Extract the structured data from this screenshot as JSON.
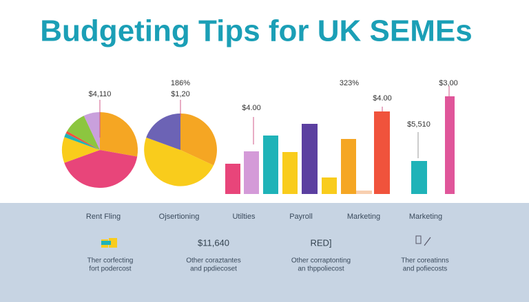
{
  "header": {
    "title": "Budgeting Tips for UK SEMEs"
  },
  "labels": [
    "$4,110",
    "186%",
    "$1,20",
    "323%",
    "$4.00",
    "$4.00",
    "$5,510",
    "$3,00"
  ],
  "categories": [
    "Rent Fling",
    "Ojsertioning",
    "Utilties",
    "Payroll",
    "Marketing",
    "Marketing"
  ],
  "bottom": [
    "$11,640",
    "RED]"
  ],
  "captions": [
    [
      "Ther corfecting",
      "fort podercost"
    ],
    [
      "Other coraztantes",
      "and ppdiecoset"
    ],
    [
      "Other corraptonting",
      "an thppoliecost"
    ],
    [
      "Ther coreatinns",
      "and pofiecosts"
    ]
  ]
}
